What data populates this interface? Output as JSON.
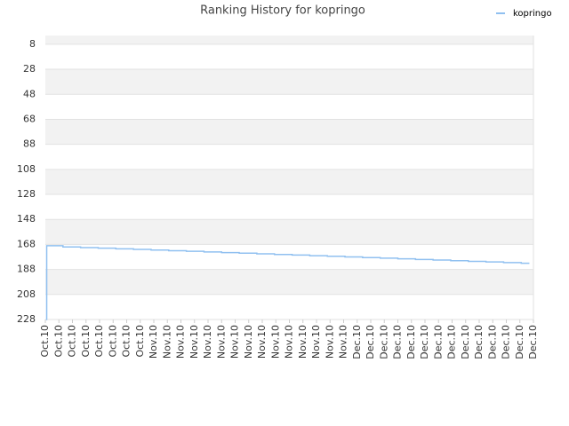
{
  "chart_data": {
    "type": "line",
    "title": "Ranking History for kopringo",
    "x": [
      0.05,
      0.1,
      1.3,
      2.6,
      3.9,
      5.2,
      6.5,
      7.8,
      9.1,
      10.4,
      11.7,
      13,
      14.3,
      15.6,
      16.9,
      18.2,
      19.5,
      20.8,
      22.1,
      23.4,
      24.7,
      26,
      27.3,
      28.6,
      29.9,
      31.2,
      32.5,
      33.8,
      35.1,
      35.7
    ],
    "series": [
      {
        "name": "kopringo",
        "color": "#90c0f0",
        "values": [
          228,
          169,
          170,
          170.5,
          171,
          171.5,
          172,
          172.5,
          173,
          173.5,
          174,
          174.5,
          175,
          175.5,
          176,
          176.5,
          177,
          177.5,
          178,
          178.5,
          179,
          179.5,
          180,
          180.5,
          181,
          181.5,
          182,
          182.5,
          183,
          183
        ]
      }
    ],
    "xlim": [
      0,
      36
    ],
    "xticks": [
      {
        "value": 0,
        "label": "Oct.10"
      },
      {
        "value": 1,
        "label": "Oct.10"
      },
      {
        "value": 2,
        "label": "Oct.10"
      },
      {
        "value": 3,
        "label": "Oct.10"
      },
      {
        "value": 4,
        "label": "Oct.10"
      },
      {
        "value": 5,
        "label": "Oct.10"
      },
      {
        "value": 6,
        "label": "Oct.10"
      },
      {
        "value": 7,
        "label": "Oct.10"
      },
      {
        "value": 8,
        "label": "Nov.10"
      },
      {
        "value": 9,
        "label": "Nov.10"
      },
      {
        "value": 10,
        "label": "Nov.10"
      },
      {
        "value": 11,
        "label": "Nov.10"
      },
      {
        "value": 12,
        "label": "Nov.10"
      },
      {
        "value": 13,
        "label": "Nov.10"
      },
      {
        "value": 14,
        "label": "Nov.10"
      },
      {
        "value": 15,
        "label": "Nov.10"
      },
      {
        "value": 16,
        "label": "Nov.10"
      },
      {
        "value": 17,
        "label": "Nov.10"
      },
      {
        "value": 18,
        "label": "Nov.10"
      },
      {
        "value": 19,
        "label": "Nov.10"
      },
      {
        "value": 20,
        "label": "Nov.10"
      },
      {
        "value": 21,
        "label": "Nov.10"
      },
      {
        "value": 22,
        "label": "Nov.10"
      },
      {
        "value": 23,
        "label": "Dec.10"
      },
      {
        "value": 24,
        "label": "Dec.10"
      },
      {
        "value": 25,
        "label": "Dec.10"
      },
      {
        "value": 26,
        "label": "Dec.10"
      },
      {
        "value": 27,
        "label": "Dec.10"
      },
      {
        "value": 28,
        "label": "Dec.10"
      },
      {
        "value": 29,
        "label": "Dec.10"
      },
      {
        "value": 30,
        "label": "Dec.10"
      },
      {
        "value": 31,
        "label": "Dec.10"
      },
      {
        "value": 32,
        "label": "Dec.10"
      },
      {
        "value": 33,
        "label": "Dec.10"
      },
      {
        "value": 34,
        "label": "Dec.10"
      },
      {
        "value": 35,
        "label": "Dec.10"
      },
      {
        "value": 36,
        "label": "Dec.10"
      }
    ],
    "ylim": [
      1,
      228
    ],
    "y_reversed": true,
    "yticks": [
      8,
      28,
      48,
      68,
      88,
      108,
      128,
      148,
      168,
      188,
      208,
      228
    ],
    "grid": true,
    "step": true,
    "legend": "top-right"
  }
}
